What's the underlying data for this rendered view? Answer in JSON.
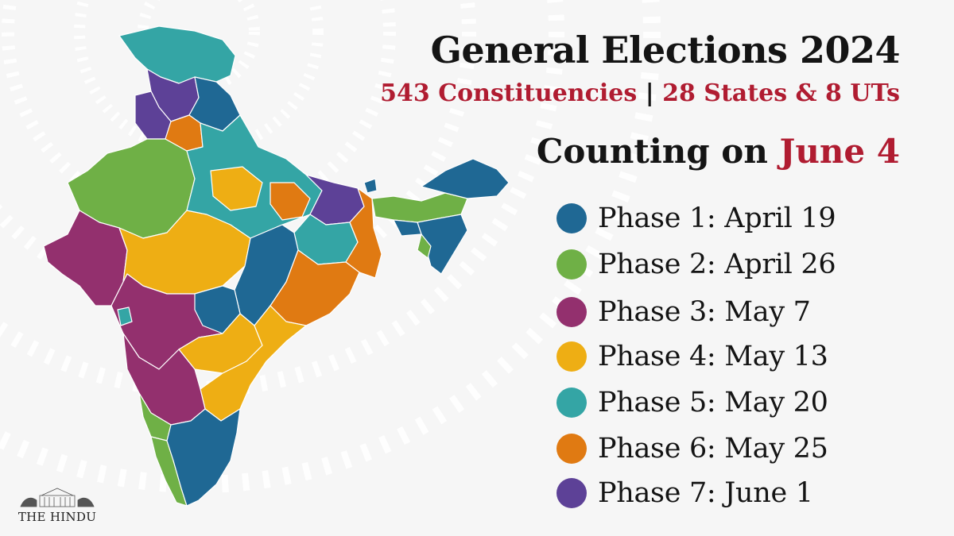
{
  "header": {
    "title": "General Elections 2024",
    "constituencies": "543 Constituencies",
    "separator": "|",
    "states": "28 States & 8 UTs",
    "counting_prefix": "Counting on",
    "counting_date": "June 4"
  },
  "legend": [
    {
      "label": "Phase 1: April 19",
      "color": "#1f6894"
    },
    {
      "label": "Phase 2: April 26",
      "color": "#6fb046"
    },
    {
      "label": "Phase 3: May 7",
      "color": "#93306e"
    },
    {
      "label": "Phase 4: May 13",
      "color": "#eeae14"
    },
    {
      "label": "Phase 5: May 20",
      "color": "#34a5a5"
    },
    {
      "label": "Phase 6: May 25",
      "color": "#e07a12"
    },
    {
      "label": "Phase 7: June 1",
      "color": "#5d4197"
    }
  ],
  "map": {
    "regions": [
      {
        "name": "Jammu & Kashmir / Ladakh",
        "phase": 5
      },
      {
        "name": "Himachal Pradesh",
        "phase": 7
      },
      {
        "name": "Punjab",
        "phase": 7
      },
      {
        "name": "Rajasthan",
        "phase": 2
      },
      {
        "name": "Gujarat",
        "phase": 3
      },
      {
        "name": "Madhya Pradesh",
        "phase": 4
      },
      {
        "name": "Uttar Pradesh",
        "phase": 5
      },
      {
        "name": "Bihar",
        "phase": 6
      },
      {
        "name": "West Bengal",
        "phase": 6
      },
      {
        "name": "Odisha",
        "phase": 6
      },
      {
        "name": "Chhattisgarh",
        "phase": 1
      },
      {
        "name": "Jharkhand",
        "phase": 5
      },
      {
        "name": "Maharashtra",
        "phase": 3
      },
      {
        "name": "Telangana",
        "phase": 4
      },
      {
        "name": "Andhra Pradesh",
        "phase": 4
      },
      {
        "name": "Karnataka",
        "phase": 3
      },
      {
        "name": "Kerala",
        "phase": 2
      },
      {
        "name": "Tamil Nadu",
        "phase": 1
      },
      {
        "name": "Arunachal Pradesh",
        "phase": 1
      },
      {
        "name": "Assam",
        "phase": 2
      },
      {
        "name": "Mizoram / Tripura",
        "phase": 1
      }
    ]
  },
  "branding": {
    "logo_text": "THE HINDU"
  }
}
